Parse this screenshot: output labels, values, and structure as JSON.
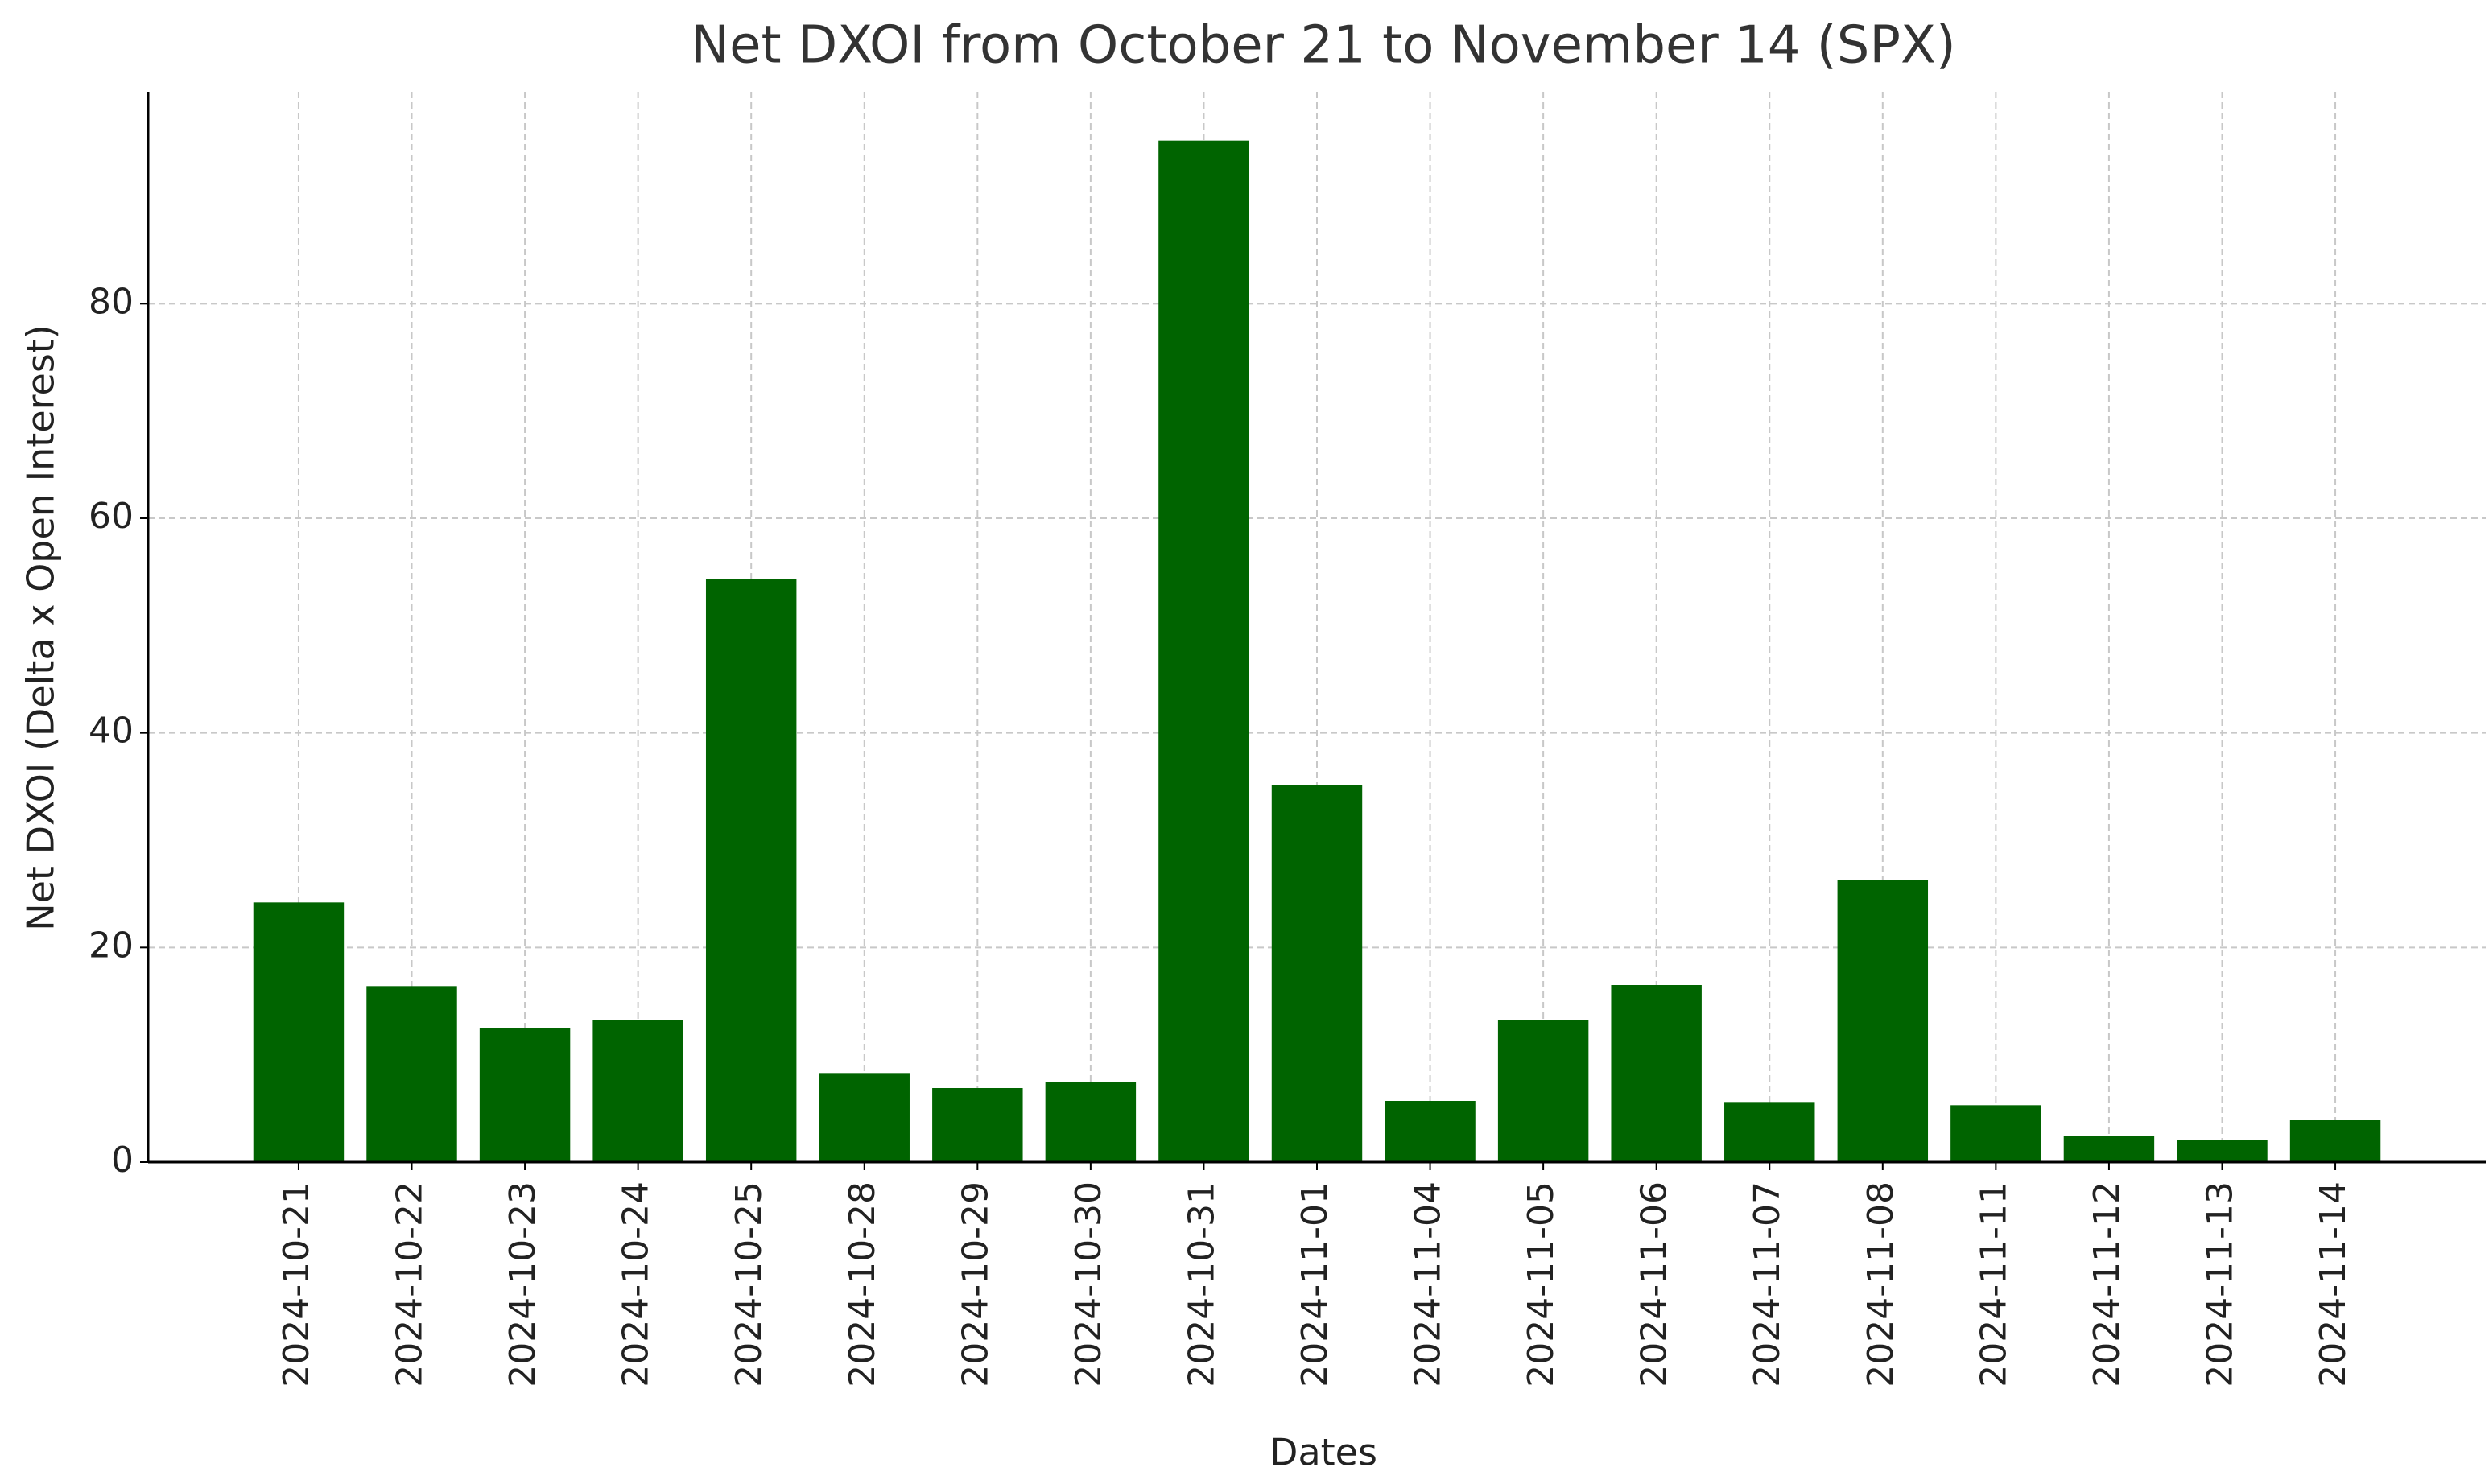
{
  "chart_data": {
    "type": "bar",
    "title": "Net DXOI from October 21 to November 14 (SPX)",
    "x_label": "Dates",
    "y_label": "Net DXOI (Delta x Open Interest)",
    "categories": [
      "2024-10-21",
      "2024-10-22",
      "2024-10-23",
      "2024-10-24",
      "2024-10-25",
      "2024-10-28",
      "2024-10-29",
      "2024-10-30",
      "2024-10-31",
      "2024-11-01",
      "2024-11-04",
      "2024-11-05",
      "2024-11-06",
      "2024-11-07",
      "2024-11-08",
      "2024-11-11",
      "2024-11-12",
      "2024-11-13",
      "2024-11-14"
    ],
    "values": [
      24.2,
      16.4,
      12.5,
      13.2,
      54.3,
      8.3,
      6.9,
      7.5,
      95.2,
      35.1,
      5.7,
      13.2,
      16.5,
      5.6,
      26.3,
      5.3,
      2.4,
      2.1,
      3.9
    ],
    "color": "#006400",
    "ylim": [
      0,
      99.75
    ],
    "yticks": [
      0,
      20,
      40,
      60,
      80
    ],
    "grid": true
  }
}
